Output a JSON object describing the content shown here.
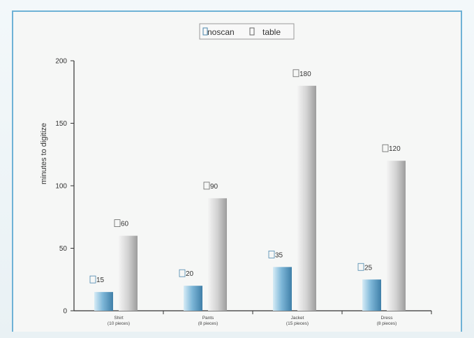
{
  "chart_data": {
    "type": "bar",
    "title": "",
    "xlabel": "",
    "ylabel": "minutes to digitize",
    "ylim": [
      0,
      200
    ],
    "yticks": [
      0,
      50,
      100,
      150,
      200
    ],
    "categories": [
      [
        "Shirt",
        "(10 pieces)"
      ],
      [
        "Pants",
        "(8 pieces)"
      ],
      [
        "Jacket",
        "(15 pieces)"
      ],
      [
        "Dress",
        "(8 pieces)"
      ]
    ],
    "series": [
      {
        "name": "noscan",
        "values": [
          15,
          20,
          35,
          25
        ],
        "color": "#5c9cc4"
      },
      {
        "name": "table",
        "values": [
          60,
          90,
          180,
          120
        ],
        "color": "#c8c8c8"
      }
    ],
    "data_labels": [
      [
        "15",
        "60"
      ],
      [
        "20",
        "90"
      ],
      [
        "35",
        "180"
      ],
      [
        "25",
        "120"
      ]
    ],
    "legend_position": "top-center",
    "grid": false
  }
}
